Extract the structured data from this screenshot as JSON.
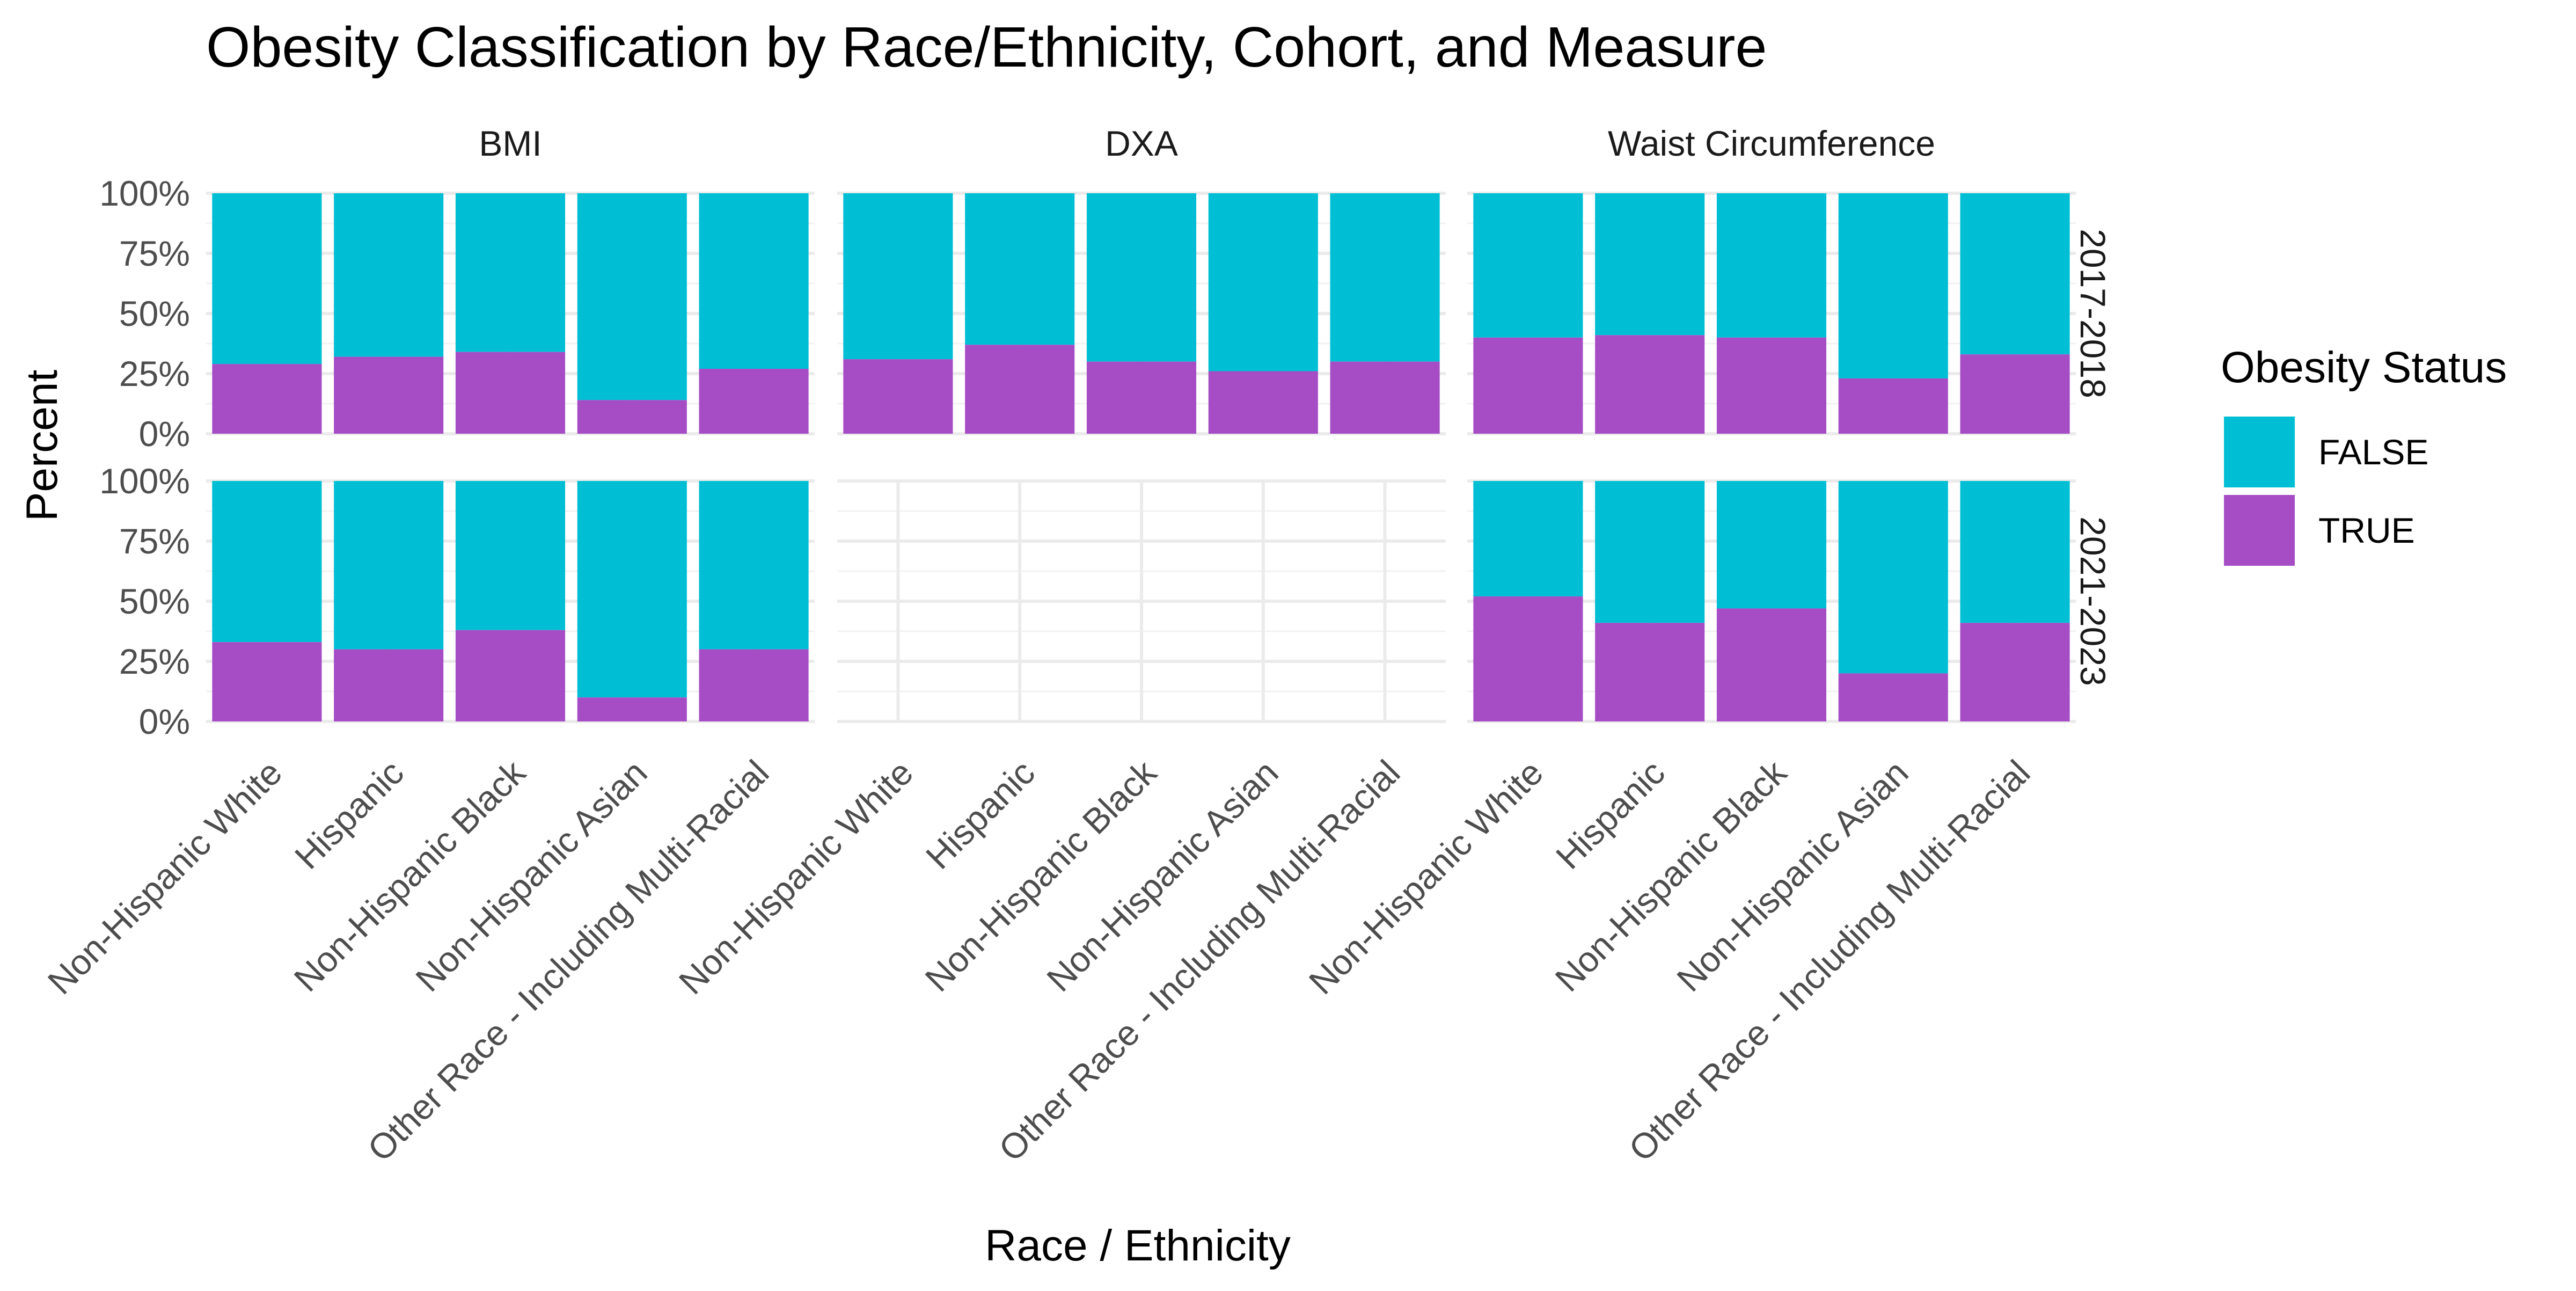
{
  "chart_data": {
    "type": "bar",
    "stacked": true,
    "title": "Obesity Classification by Race/Ethnicity, Cohort, and Measure",
    "xlabel": "Race / Ethnicity",
    "ylabel": "Percent",
    "ylim": [
      0,
      1
    ],
    "y_ticks": [
      "0%",
      "25%",
      "50%",
      "75%",
      "100%"
    ],
    "categories": [
      "Non-Hispanic White",
      "Hispanic",
      "Non-Hispanic Black",
      "Non-Hispanic Asian",
      "Other Race - Including Multi-Racial"
    ],
    "facet_columns": [
      "BMI",
      "DXA",
      "Waist Circumference"
    ],
    "facet_rows": [
      "2017-2018",
      "2021-2023"
    ],
    "legend": {
      "title": "Obesity Status",
      "position": "right",
      "entries": [
        {
          "label": "FALSE",
          "color": "#00BFD4"
        },
        {
          "label": "TRUE",
          "color": "#A64DC6"
        }
      ]
    },
    "grid": true,
    "panels": [
      {
        "measure": "BMI",
        "cohort": "2017-2018",
        "true_share": [
          0.29,
          0.32,
          0.34,
          0.14,
          0.27
        ]
      },
      {
        "measure": "DXA",
        "cohort": "2017-2018",
        "true_share": [
          0.31,
          0.37,
          0.3,
          0.26,
          0.3
        ]
      },
      {
        "measure": "Waist Circumference",
        "cohort": "2017-2018",
        "true_share": [
          0.4,
          0.41,
          0.4,
          0.23,
          0.33
        ]
      },
      {
        "measure": "BMI",
        "cohort": "2021-2023",
        "true_share": [
          0.33,
          0.3,
          0.38,
          0.1,
          0.3
        ]
      },
      {
        "measure": "DXA",
        "cohort": "2021-2023",
        "true_share": []
      },
      {
        "measure": "Waist Circumference",
        "cohort": "2021-2023",
        "true_share": [
          0.52,
          0.41,
          0.47,
          0.2,
          0.41
        ]
      }
    ]
  }
}
